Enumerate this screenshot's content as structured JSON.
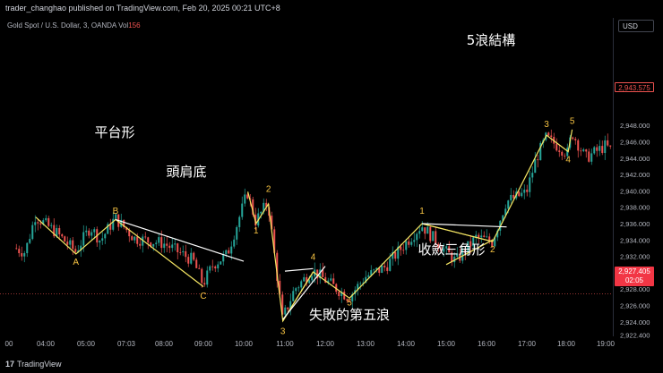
{
  "header": {
    "publish_text": "trader_changhao published on TradingView.com, Feb 20, 2025 00:21 UTC+8"
  },
  "legend": {
    "symbol_text": "Gold Spot / U.S. Dollar, 3, OANDA",
    "vol_label": "Vol",
    "vol_value": "156"
  },
  "currency_button": "USD",
  "price_tags": {
    "last": "2,943.575",
    "current": "2,927.405",
    "countdown": "02:05"
  },
  "footer": {
    "brand_glyph": "17",
    "brand": "TradingView"
  },
  "annotations": {
    "pattern_labels": [
      "平台形",
      "頭肩底",
      "失敗的第五浪",
      "收斂三角形",
      "5浪結構"
    ],
    "wave_labels": [
      {
        "text": "A",
        "x": "04:45",
        "y": 2931.0
      },
      {
        "text": "B",
        "x": "06:30",
        "y": 2937.2
      },
      {
        "text": "C",
        "x": "09:00",
        "y": 2926.8
      },
      {
        "text": "1",
        "x": "10:18",
        "y": 2934.8
      },
      {
        "text": "2",
        "x": "10:36",
        "y": 2939.9
      },
      {
        "text": "3",
        "x": "10:57",
        "y": 2922.5
      },
      {
        "text": "4",
        "x": "11:42",
        "y": 2931.6
      },
      {
        "text": "5",
        "x": "12:36",
        "y": 2926.0
      },
      {
        "text": "1",
        "x": "14:24",
        "y": 2937.2
      },
      {
        "text": "2",
        "x": "16:09",
        "y": 2932.5
      },
      {
        "text": "3",
        "x": "17:30",
        "y": 2947.8
      },
      {
        "text": "4",
        "x": "18:03",
        "y": 2943.5
      },
      {
        "text": "5",
        "x": "18:09",
        "y": 2948.2
      }
    ]
  },
  "chart_data": {
    "type": "candlestick",
    "symbol": "Gold Spot / U.S. Dollar",
    "interval": "3",
    "source": "OANDA",
    "x_ticks": [
      "00",
      "04:00",
      "05:00",
      "07:03",
      "08:00",
      "09:00",
      "10:00",
      "11:00",
      "12:00",
      "13:00",
      "14:00",
      "15:00",
      "16:00",
      "17:00",
      "18:00",
      "19:00"
    ],
    "y_ticks": [
      2922.4,
      2924.0,
      2926.0,
      2928.0,
      2930.0,
      2932.0,
      2934.0,
      2936.0,
      2938.0,
      2940.0,
      2942.0,
      2944.0,
      2946.0,
      2948.0
    ],
    "y_tick_labels": [
      "2,922.400",
      "2,924.000",
      "2,926.000",
      "2,928.000",
      "2,930.000",
      "2,932.000",
      "2,934.000",
      "2,936.000",
      "2,938.000",
      "2,940.000",
      "2,942.000",
      "2,944.000",
      "2,946.000",
      "2,948.000"
    ],
    "ylim": [
      2921.6,
      2949.0
    ],
    "current_price": 2927.405,
    "last_price": 2943.575,
    "colors": {
      "up": "#26a69a",
      "down": "#ef5350",
      "pattern_line": "#f5e663",
      "trend_line": "#ffffff",
      "wave_label": "#f5c242"
    },
    "price_path": [
      {
        "x": "03:15",
        "y": 2933.0
      },
      {
        "x": "03:30",
        "y": 2932.5
      },
      {
        "x": "03:45",
        "y": 2936.9
      },
      {
        "x": "04:15",
        "y": 2935.0
      },
      {
        "x": "04:45",
        "y": 2932.6
      },
      {
        "x": "05:15",
        "y": 2935.6
      },
      {
        "x": "05:45",
        "y": 2933.9
      },
      {
        "x": "06:30",
        "y": 2936.7
      },
      {
        "x": "07:15",
        "y": 2934.2
      },
      {
        "x": "08:00",
        "y": 2933.6
      },
      {
        "x": "08:45",
        "y": 2931.5
      },
      {
        "x": "09:00",
        "y": 2928.6
      },
      {
        "x": "09:15",
        "y": 2931.0
      },
      {
        "x": "09:36",
        "y": 2932.2
      },
      {
        "x": "10:06",
        "y": 2939.8
      },
      {
        "x": "10:18",
        "y": 2936.3
      },
      {
        "x": "10:36",
        "y": 2938.6
      },
      {
        "x": "10:57",
        "y": 2924.3
      },
      {
        "x": "11:15",
        "y": 2928.0
      },
      {
        "x": "11:42",
        "y": 2930.3
      },
      {
        "x": "12:15",
        "y": 2928.2
      },
      {
        "x": "12:36",
        "y": 2927.0
      },
      {
        "x": "13:00",
        "y": 2929.5
      },
      {
        "x": "13:30",
        "y": 2930.7
      },
      {
        "x": "14:00",
        "y": 2933.6
      },
      {
        "x": "14:24",
        "y": 2935.8
      },
      {
        "x": "15:00",
        "y": 2932.6
      },
      {
        "x": "15:15",
        "y": 2931.4
      },
      {
        "x": "15:45",
        "y": 2934.3
      },
      {
        "x": "16:09",
        "y": 2933.8
      },
      {
        "x": "16:30",
        "y": 2938.7
      },
      {
        "x": "17:00",
        "y": 2939.8
      },
      {
        "x": "17:15",
        "y": 2944.0
      },
      {
        "x": "17:30",
        "y": 2946.5
      },
      {
        "x": "18:03",
        "y": 2944.6
      },
      {
        "x": "18:09",
        "y": 2947.2
      },
      {
        "x": "18:30",
        "y": 2944.0
      },
      {
        "x": "19:00",
        "y": 2945.5
      },
      {
        "x": "19:30",
        "y": 2943.6
      }
    ],
    "pattern_lines": [
      {
        "name": "flat",
        "points": [
          {
            "x": "03:45",
            "y": 2936.8
          },
          {
            "x": "04:45",
            "y": 2932.3
          },
          {
            "x": "06:30",
            "y": 2936.5
          },
          {
            "x": "09:00",
            "y": 2928.3
          }
        ]
      },
      {
        "name": "neckline",
        "points": [
          {
            "x": "06:30",
            "y": 2936.5
          },
          {
            "x": "10:00",
            "y": 2931.4
          }
        ]
      },
      {
        "name": "impulse-down",
        "points": [
          {
            "x": "10:06",
            "y": 2939.9
          },
          {
            "x": "10:18",
            "y": 2936.0
          },
          {
            "x": "10:36",
            "y": 2938.4
          },
          {
            "x": "10:57",
            "y": 2924.1
          },
          {
            "x": "11:42",
            "y": 2930.1
          },
          {
            "x": "12:36",
            "y": 2926.9
          }
        ]
      },
      {
        "name": "impulse-up",
        "points": [
          {
            "x": "12:36",
            "y": 2926.9
          },
          {
            "x": "14:24",
            "y": 2936.0
          },
          {
            "x": "16:09",
            "y": 2933.8
          },
          {
            "x": "17:30",
            "y": 2946.8
          },
          {
            "x": "18:03",
            "y": 2944.8
          },
          {
            "x": "18:09",
            "y": 2947.5
          }
        ]
      },
      {
        "name": "triangle-lower",
        "points": [
          {
            "x": "14:24",
            "y": 2936.0
          },
          {
            "x": "16:09",
            "y": 2933.8
          }
        ]
      },
      {
        "name": "triangle-upper-lower",
        "points": [
          {
            "x": "15:00",
            "y": 2931.0
          },
          {
            "x": "16:09",
            "y": 2934.0
          }
        ]
      },
      {
        "name": "triangle-top-line",
        "points": [
          {
            "x": "14:24",
            "y": 2936.0
          },
          {
            "x": "16:30",
            "y": 2935.6
          }
        ]
      },
      {
        "name": "wave4-channel",
        "points": [
          {
            "x": "10:57",
            "y": 2924.1
          },
          {
            "x": "11:42",
            "y": 2930.1
          }
        ]
      },
      {
        "name": "wave4-trend",
        "points": [
          {
            "x": "10:57",
            "y": 2924.3
          },
          {
            "x": "12:00",
            "y": 2930.8
          }
        ]
      },
      {
        "name": "wave4-top",
        "points": [
          {
            "x": "11:00",
            "y": 2930.2
          },
          {
            "x": "11:42",
            "y": 2930.5
          }
        ]
      }
    ]
  }
}
